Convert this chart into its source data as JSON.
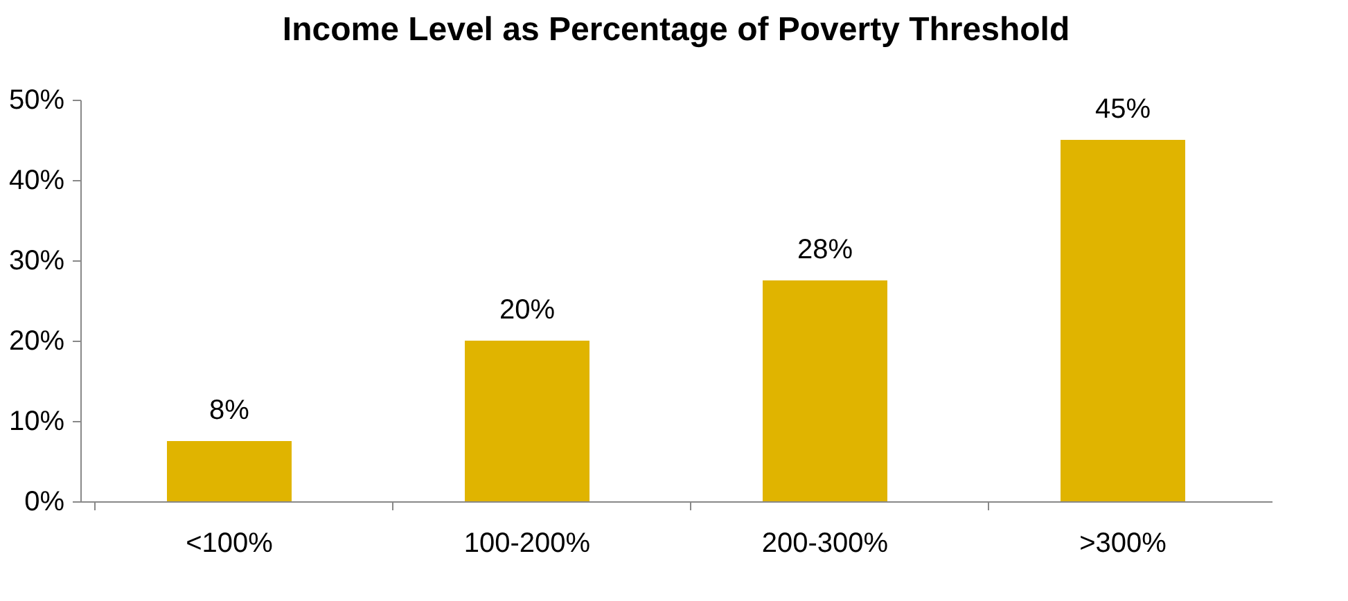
{
  "chart_data": {
    "type": "bar",
    "title": "Income Level as Percentage of Poverty Threshold",
    "categories": [
      "<100%",
      "100-200%",
      "200-300%",
      ">300%"
    ],
    "values": [
      7.5,
      20,
      27.5,
      45
    ],
    "value_labels": [
      "8%",
      "20%",
      "28%",
      "45%"
    ],
    "color": "#e0b400",
    "ylim": [
      0,
      50
    ],
    "yticks": [
      {
        "value": 0,
        "label": "0%"
      },
      {
        "value": 10,
        "label": "10%"
      },
      {
        "value": 20,
        "label": "20%"
      },
      {
        "value": 30,
        "label": "30%"
      },
      {
        "value": 40,
        "label": "40%"
      },
      {
        "value": 50,
        "label": "50%"
      }
    ],
    "grid": false
  }
}
